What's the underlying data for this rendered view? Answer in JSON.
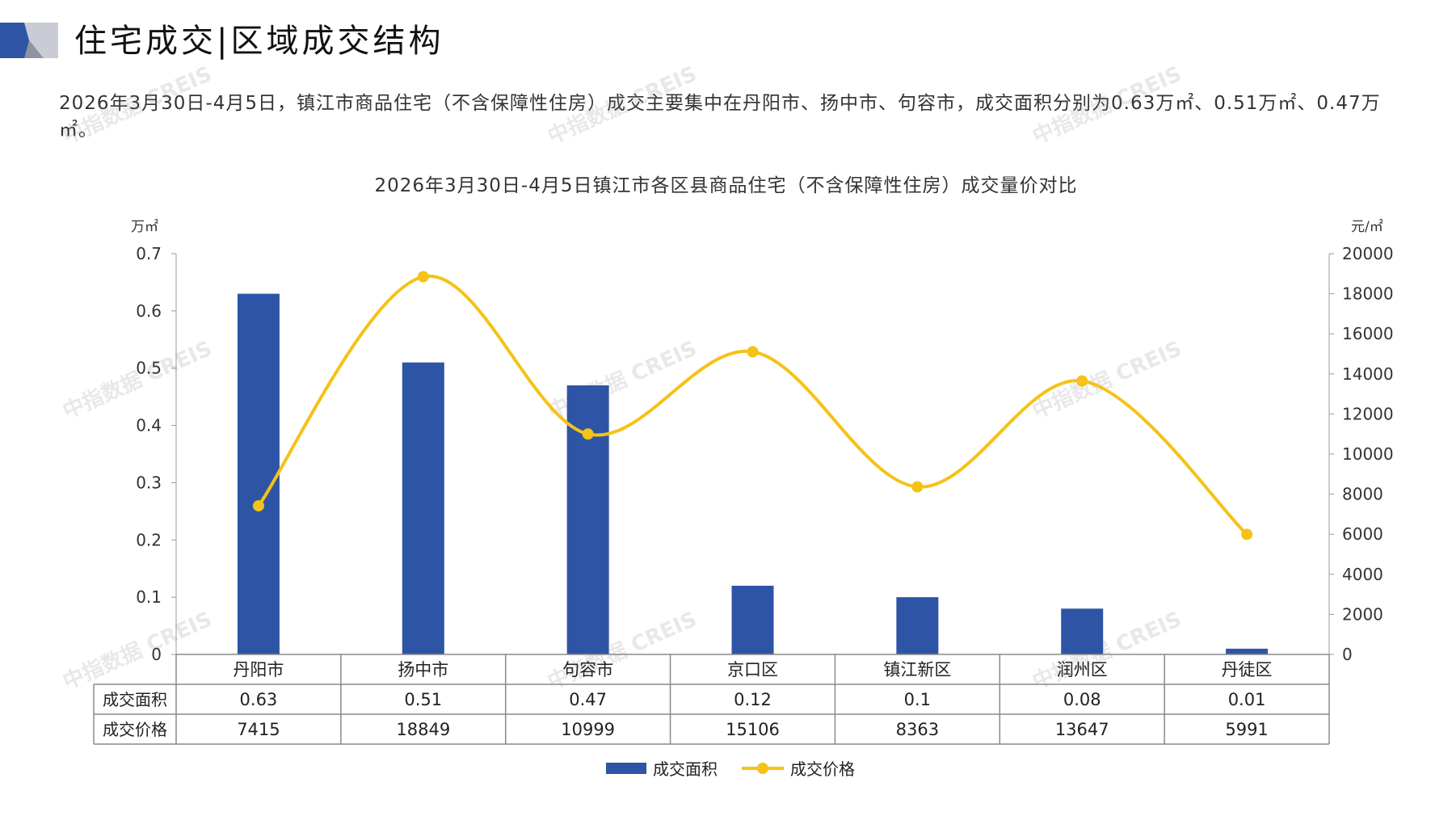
{
  "header": {
    "title": "住宅成交|区域成交结构"
  },
  "intro": {
    "text": "2026年3月30日-4月5日，镇江市商品住宅（不含保障性住房）成交主要集中在丹阳市、扬中市、句容市，成交面积分别为0.63万㎡、0.51万㎡、0.47万㎡。"
  },
  "watermark": "中指数据 CREIS",
  "colors": {
    "bar": "#2E55A5",
    "line": "#F5C216",
    "grid": "#999999"
  },
  "chart_data": {
    "type": "bar",
    "title": "2026年3月30日-4月5日镇江市各区县商品住宅（不含保障性住房）成交量价对比",
    "categories": [
      "丹阳市",
      "扬中市",
      "句容市",
      "京口区",
      "镇江新区",
      "润州区",
      "丹徒区"
    ],
    "y_left_label": "万㎡",
    "y_right_label": "元/㎡",
    "ylim_left": [
      0,
      0.7
    ],
    "ylim_right": [
      0,
      20000
    ],
    "yticks_left": [
      "0",
      "0.1",
      "0.2",
      "0.3",
      "0.4",
      "0.5",
      "0.6",
      "0.7"
    ],
    "yticks_right": [
      "0",
      "2000",
      "4000",
      "6000",
      "8000",
      "10000",
      "12000",
      "14000",
      "16000",
      "18000",
      "20000"
    ],
    "series": [
      {
        "name": "成交面积",
        "type": "bar",
        "axis": "left",
        "values": [
          0.63,
          0.51,
          0.47,
          0.12,
          0.1,
          0.08,
          0.01
        ],
        "labels": [
          "0.63",
          "0.51",
          "0.47",
          "0.12",
          "0.1",
          "0.08",
          "0.01"
        ]
      },
      {
        "name": "成交价格",
        "type": "line",
        "axis": "right",
        "values": [
          7415,
          18849,
          10999,
          15106,
          8363,
          13647,
          5991
        ],
        "labels": [
          "7415",
          "18849",
          "10999",
          "15106",
          "8363",
          "13647",
          "5991"
        ]
      }
    ],
    "legend": "bottom",
    "data_table": true
  }
}
